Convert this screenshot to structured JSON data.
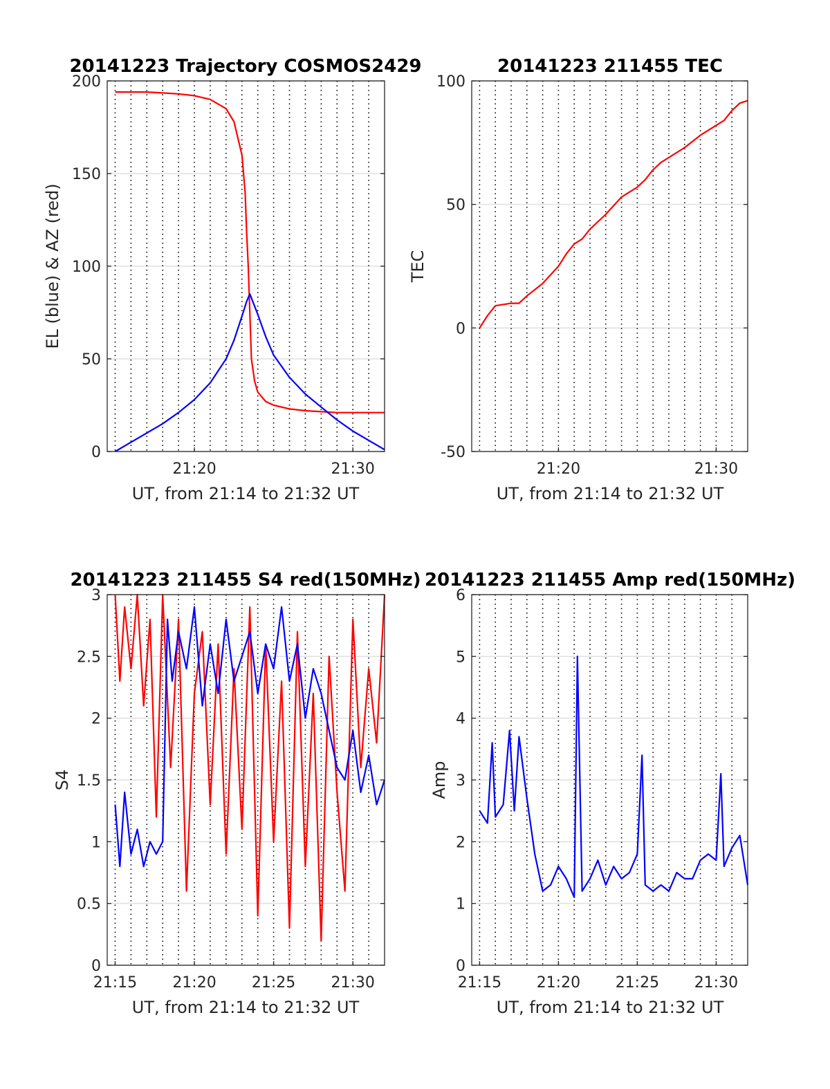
{
  "figure": {
    "background": "#ffffff"
  },
  "chart_data": [
    {
      "id": "trajectory",
      "type": "line",
      "title": "20141223 Trajectory COSMOS2429",
      "xlabel": "UT, from 21:14 to 21:32 UT",
      "ylabel": "EL (blue) & AZ (red)",
      "x_unit": "minutes after 21:00 UT",
      "xlim": [
        14.5,
        32
      ],
      "ylim": [
        0,
        200
      ],
      "xticks": [
        20,
        30
      ],
      "xticklabels": [
        "21:20",
        "21:30"
      ],
      "yticks": [
        0,
        50,
        100,
        150,
        200
      ],
      "yticklabels": [
        "0",
        "50",
        "100",
        "150",
        "200"
      ],
      "ygrid": true,
      "vertical_dotted_lines": [
        15,
        16,
        17,
        18,
        19,
        20,
        21,
        22,
        23,
        24,
        25,
        26,
        27,
        28,
        29,
        30,
        31
      ],
      "series": [
        {
          "color": "#ff0000",
          "x": [
            15,
            16,
            17,
            18,
            19,
            20,
            21,
            22,
            22.5,
            23,
            23.2,
            23.3,
            23.4,
            23.5,
            23.6,
            23.8,
            24,
            24.5,
            25,
            26,
            27,
            28,
            29,
            30,
            31,
            32
          ],
          "y": [
            194,
            194,
            194,
            193.5,
            193,
            192,
            190,
            185,
            178,
            160,
            140,
            118,
            100,
            75,
            50,
            38,
            32,
            27,
            25,
            23,
            22,
            21.5,
            21,
            21,
            21,
            21
          ]
        },
        {
          "color": "#0000ff",
          "x": [
            15,
            16,
            17,
            18,
            19,
            20,
            21,
            22,
            22.5,
            23,
            23.3,
            23.5,
            24,
            24.5,
            25,
            26,
            27,
            28,
            29,
            30,
            31,
            32
          ],
          "y": [
            0,
            5,
            10,
            15,
            21,
            28,
            37,
            50,
            60,
            73,
            81,
            85,
            74,
            62,
            52,
            40,
            31,
            24,
            17,
            11,
            6,
            1
          ]
        }
      ]
    },
    {
      "id": "tec",
      "type": "line",
      "title": "20141223 211455 TEC",
      "xlabel": "UT, from 21:14 to 21:32 UT",
      "ylabel": "TEC",
      "x_unit": "minutes after 21:00 UT",
      "xlim": [
        14.5,
        32
      ],
      "ylim": [
        -50,
        100
      ],
      "xticks": [
        20,
        30
      ],
      "xticklabels": [
        "21:20",
        "21:30"
      ],
      "yticks": [
        -50,
        0,
        50,
        100
      ],
      "yticklabels": [
        "-50",
        "0",
        "50",
        "100"
      ],
      "ygrid": true,
      "vertical_dotted_lines": [
        15,
        16,
        17,
        18,
        19,
        20,
        21,
        22,
        23,
        24,
        25,
        26,
        27,
        28,
        29,
        30,
        31
      ],
      "series": [
        {
          "color": "#ff0000",
          "x": [
            15,
            15.5,
            16,
            17,
            17.5,
            18,
            19,
            20,
            20.5,
            21,
            21.5,
            22,
            23,
            24,
            25,
            25.5,
            26,
            26.5,
            27,
            28,
            29,
            30,
            30.5,
            31,
            31.5,
            32
          ],
          "y": [
            0,
            5,
            9,
            10,
            10,
            13,
            18,
            25,
            30,
            34,
            36,
            40,
            46,
            53,
            57,
            60,
            64,
            67,
            69,
            73,
            78,
            82,
            84,
            88,
            91,
            92
          ]
        }
      ]
    },
    {
      "id": "s4",
      "type": "line",
      "title": "20141223 211455 S4 red(150MHz)",
      "xlabel": "UT, from 21:14 to 21:32 UT",
      "ylabel": "S4",
      "x_unit": "minutes after 21:00 UT",
      "xlim": [
        14.5,
        32
      ],
      "ylim": [
        0,
        3
      ],
      "xticks": [
        15,
        20,
        25,
        30
      ],
      "xticklabels": [
        "21:15",
        "21:20",
        "21:25",
        "21:30"
      ],
      "yticks": [
        0,
        0.5,
        1,
        1.5,
        2,
        2.5,
        3
      ],
      "yticklabels": [
        "0",
        "0.5",
        "1",
        "1.5",
        "2",
        "2.5",
        "3"
      ],
      "ygrid": true,
      "vertical_dotted_lines": [
        15,
        16,
        17,
        18,
        19,
        20,
        21,
        22,
        23,
        24,
        25,
        26,
        27,
        28,
        29,
        30,
        31
      ],
      "series": [
        {
          "color": "#ff0000",
          "x": [
            15,
            15.3,
            15.6,
            16,
            16.4,
            16.8,
            17.2,
            17.6,
            18,
            18.5,
            19,
            19.5,
            20,
            20.5,
            21,
            21.5,
            22,
            22.5,
            23,
            23.5,
            24,
            24.5,
            25,
            25.5,
            26,
            26.5,
            27,
            27.5,
            28,
            28.5,
            29,
            29.5,
            30,
            30.5,
            31,
            31.5,
            32
          ],
          "y": [
            3,
            2.3,
            2.9,
            2.4,
            3,
            2.1,
            2.8,
            1.2,
            3,
            1.6,
            2.8,
            0.6,
            2.2,
            2.7,
            1.3,
            2.6,
            0.9,
            2.4,
            1.1,
            2.9,
            0.4,
            2.6,
            1.0,
            2.3,
            0.3,
            2.7,
            0.8,
            2.2,
            0.2,
            2.5,
            1.4,
            0.6,
            2.8,
            1.6,
            2.4,
            1.8,
            3
          ]
        },
        {
          "color": "#0000ff",
          "x": [
            15,
            15.3,
            15.6,
            16,
            16.4,
            16.8,
            17.2,
            17.6,
            18,
            18.3,
            18.6,
            19,
            19.5,
            20,
            20.5,
            21,
            21.5,
            22,
            22.5,
            23,
            23.5,
            24,
            24.5,
            25,
            25.5,
            26,
            26.5,
            27,
            27.5,
            28,
            28.5,
            29,
            29.5,
            30,
            30.5,
            31,
            31.5,
            32
          ],
          "y": [
            1.3,
            0.8,
            1.4,
            0.9,
            1.1,
            0.8,
            1.0,
            0.9,
            1.0,
            2.8,
            2.3,
            2.7,
            2.4,
            2.9,
            2.1,
            2.6,
            2.2,
            2.8,
            2.3,
            2.5,
            2.7,
            2.2,
            2.6,
            2.4,
            2.9,
            2.3,
            2.6,
            2.0,
            2.4,
            2.2,
            1.9,
            1.6,
            1.5,
            1.9,
            1.4,
            1.7,
            1.3,
            1.5
          ]
        }
      ]
    },
    {
      "id": "amp",
      "type": "line",
      "title": "20141223 211455 Amp red(150MHz)",
      "xlabel": "UT, from 21:14 to 21:32 UT",
      "ylabel": "Amp",
      "x_unit": "minutes after 21:00 UT",
      "xlim": [
        14.5,
        32
      ],
      "ylim": [
        0,
        6
      ],
      "xticks": [
        15,
        20,
        25,
        30
      ],
      "xticklabels": [
        "21:15",
        "21:20",
        "21:25",
        "21:30"
      ],
      "yticks": [
        0,
        1,
        2,
        3,
        4,
        5,
        6
      ],
      "yticklabels": [
        "0",
        "1",
        "2",
        "3",
        "4",
        "5",
        "6"
      ],
      "ygrid": true,
      "vertical_dotted_lines": [
        15,
        16,
        17,
        18,
        19,
        20,
        21,
        22,
        23,
        24,
        25,
        26,
        27,
        28,
        29,
        30,
        31
      ],
      "series": [
        {
          "color": "#0000ff",
          "x": [
            15,
            15.5,
            15.8,
            16,
            16.5,
            16.9,
            17.2,
            17.5,
            18,
            18.5,
            19,
            19.5,
            20,
            20.5,
            21,
            21.2,
            21.5,
            22,
            22.5,
            23,
            23.5,
            24,
            24.5,
            25,
            25.3,
            25.5,
            26,
            26.5,
            27,
            27.5,
            28,
            28.5,
            29,
            29.5,
            30,
            30.3,
            30.5,
            31,
            31.5,
            32
          ],
          "y": [
            2.5,
            2.3,
            3.6,
            2.4,
            2.6,
            3.8,
            2.5,
            3.7,
            2.7,
            1.8,
            1.2,
            1.3,
            1.6,
            1.4,
            1.1,
            5.0,
            1.2,
            1.4,
            1.7,
            1.3,
            1.6,
            1.4,
            1.5,
            1.8,
            3.4,
            1.3,
            1.2,
            1.3,
            1.2,
            1.5,
            1.4,
            1.4,
            1.7,
            1.8,
            1.7,
            3.1,
            1.6,
            1.9,
            2.1,
            1.3
          ]
        }
      ]
    }
  ]
}
